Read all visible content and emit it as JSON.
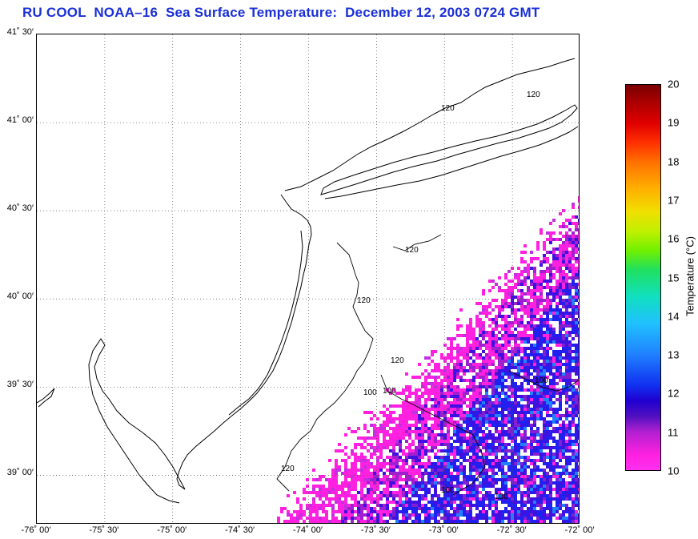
{
  "title": "RU COOL  NOAA–16  Sea Surface Temperature:  December 12, 2003 0724 GMT",
  "map": {
    "lat_labels": [
      "41˚ 30′",
      "41˚ 00′",
      "40˚ 30′",
      "40˚ 00′",
      "39˚ 30′",
      "39˚ 00′"
    ],
    "lat_values": [
      41.5,
      41.0,
      40.5,
      40.0,
      39.5,
      39.0
    ],
    "lon_labels": [
      "-76˚ 00′",
      "-75˚ 30′",
      "-75˚ 00′",
      "-74˚ 30′",
      "-74˚ 00′",
      "-73˚ 30′",
      "-73˚ 00′",
      "-72˚ 30′",
      "-72˚ 00′"
    ],
    "lon_values": [
      -76.0,
      -75.5,
      -75.0,
      -74.5,
      -74.0,
      -73.5,
      -73.0,
      -72.5,
      -72.0
    ],
    "lat_range": [
      38.72,
      41.5
    ],
    "lon_range": [
      -76.0,
      -72.0
    ],
    "isobath_labels": [
      "120",
      "120",
      "120",
      "120",
      "120",
      "100",
      "100",
      "100",
      "100",
      "100",
      "120"
    ],
    "grid": "dotted"
  },
  "colorbar": {
    "label": "Temperature (°C)",
    "ticks": [
      "20",
      "19",
      "18",
      "17",
      "16",
      "15",
      "14",
      "13",
      "12",
      "11",
      "10"
    ],
    "min": 10,
    "max": 20
  }
}
